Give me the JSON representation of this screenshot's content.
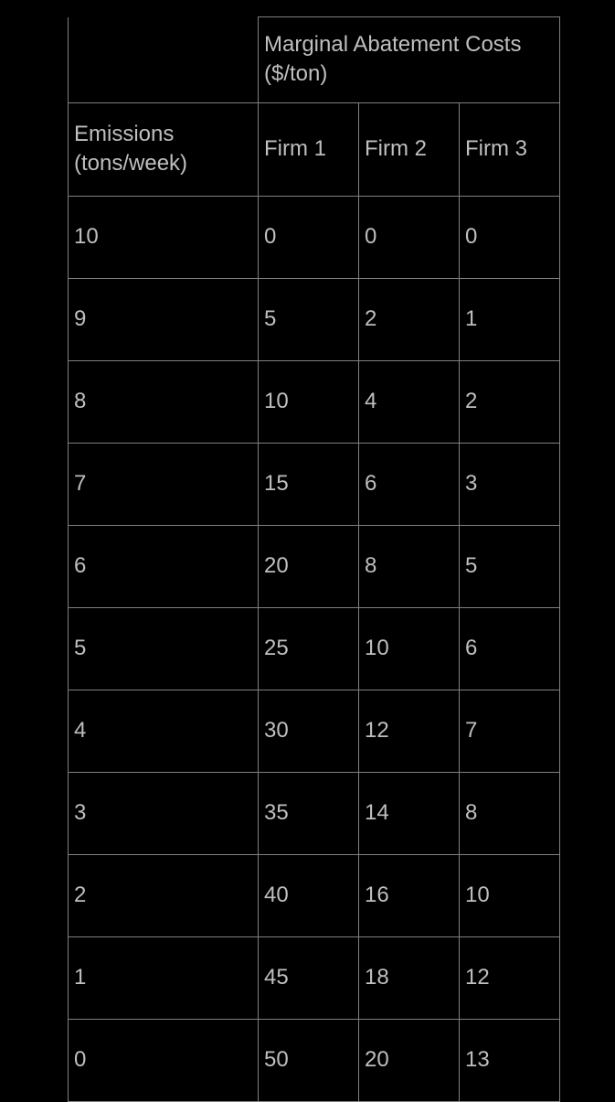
{
  "table": {
    "type": "table",
    "background_color": "#000000",
    "text_color": "#bfbfbf",
    "border_color": "#808080",
    "font_size": 24,
    "merged_header": "Marginal Abatement Costs ($/ton)",
    "row_header": "Emissions (tons/week)",
    "columns": [
      "Firm 1",
      "Firm 2",
      "Firm 3"
    ],
    "col_emissions_width": 200,
    "col_firm_width": 110,
    "rows": [
      {
        "emissions": "10",
        "firm1": "0",
        "firm2": "0",
        "firm3": "0"
      },
      {
        "emissions": "9",
        "firm1": "5",
        "firm2": "2",
        "firm3": "1"
      },
      {
        "emissions": "8",
        "firm1": "10",
        "firm2": "4",
        "firm3": "2"
      },
      {
        "emissions": "7",
        "firm1": "15",
        "firm2": "6",
        "firm3": "3"
      },
      {
        "emissions": "6",
        "firm1": "20",
        "firm2": "8",
        "firm3": "5"
      },
      {
        "emissions": "5",
        "firm1": "25",
        "firm2": "10",
        "firm3": "6"
      },
      {
        "emissions": "4",
        "firm1": "30",
        "firm2": "12",
        "firm3": "7"
      },
      {
        "emissions": "3",
        "firm1": "35",
        "firm2": "14",
        "firm3": "8"
      },
      {
        "emissions": "2",
        "firm1": "40",
        "firm2": "16",
        "firm3": "10"
      },
      {
        "emissions": "1",
        "firm1": "45",
        "firm2": "18",
        "firm3": "12"
      },
      {
        "emissions": "0",
        "firm1": "50",
        "firm2": "20",
        "firm3": "13"
      }
    ]
  }
}
